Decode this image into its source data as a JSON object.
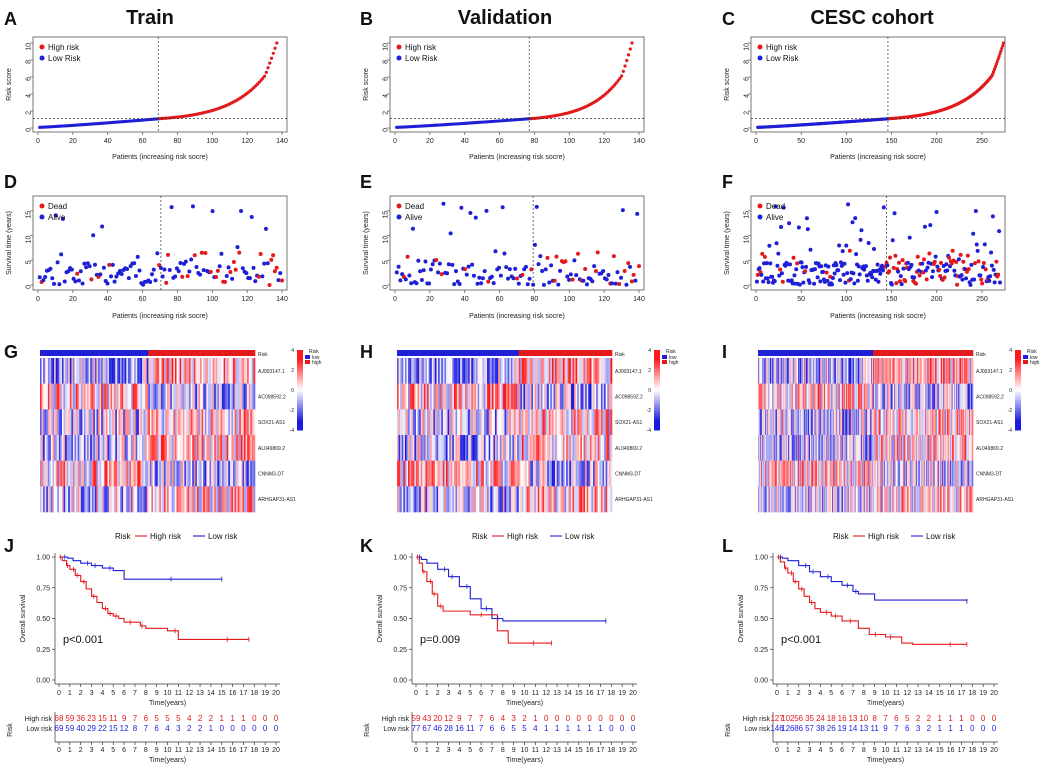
{
  "columns": [
    {
      "title": "Train"
    },
    {
      "title": "Validation"
    },
    {
      "title": "CESC cohort"
    }
  ],
  "colors": {
    "high": "#e31a1c",
    "low": "#1f1fd6",
    "heat_high": "#e8191c",
    "heat_mid": "#ffffff",
    "heat_low": "#1a1ae0"
  },
  "chart_data": [
    {
      "panel": "A",
      "type": "scatter",
      "ylabel": "Risk score",
      "xlabel": "Patients (increasing risk socre)",
      "xlim": [
        0,
        140
      ],
      "xticks": [
        0,
        20,
        40,
        60,
        80,
        100,
        120,
        140
      ],
      "ylim": [
        0,
        10
      ],
      "yticks": [
        0,
        2,
        4,
        6,
        8,
        10
      ],
      "n": 137,
      "cutoff_index": 69,
      "cutoff_value": 1.1,
      "max_value": 10,
      "legend": [
        "High risk",
        "Low Risk"
      ]
    },
    {
      "panel": "B",
      "type": "scatter",
      "ylabel": "Risk score",
      "xlabel": "Patients (increasing risk socre)",
      "xlim": [
        0,
        140
      ],
      "xticks": [
        0,
        20,
        40,
        60,
        80,
        100,
        120,
        140
      ],
      "ylim": [
        0,
        10
      ],
      "yticks": [
        0,
        2,
        4,
        6,
        8,
        10
      ],
      "n": 136,
      "cutoff_index": 77,
      "cutoff_value": 1.1,
      "max_value": 10,
      "legend": [
        "High risk",
        "Low Risk"
      ]
    },
    {
      "panel": "C",
      "type": "scatter",
      "ylabel": "Risk score",
      "xlabel": "Patients (increasing risk socre)",
      "xlim": [
        0,
        270
      ],
      "xticks": [
        0,
        50,
        100,
        150,
        200,
        250
      ],
      "ylim": [
        0,
        10
      ],
      "yticks": [
        0,
        2,
        4,
        6,
        8,
        10
      ],
      "n": 273,
      "cutoff_index": 146,
      "cutoff_value": 1.1,
      "max_value": 10,
      "legend": [
        "High risk",
        "Low Risk"
      ]
    },
    {
      "panel": "D",
      "type": "scatter",
      "ylabel": "Survival time (years)",
      "xlabel": "Patients (increasing risk socre)",
      "xlim": [
        0,
        140
      ],
      "xticks": [
        0,
        20,
        40,
        60,
        80,
        100,
        120,
        140
      ],
      "ylim": [
        0,
        17
      ],
      "yticks": [
        0,
        5,
        10,
        15
      ],
      "n": 137,
      "cutoff_index": 69,
      "seed": 11,
      "legend": [
        "Dead",
        "Alive"
      ]
    },
    {
      "panel": "E",
      "type": "scatter",
      "ylabel": "Survival time (years)",
      "xlabel": "Patients (increasing risk socre)",
      "xlim": [
        0,
        140
      ],
      "xticks": [
        0,
        20,
        40,
        60,
        80,
        100,
        120,
        140
      ],
      "ylim": [
        0,
        17
      ],
      "yticks": [
        0,
        5,
        10,
        15
      ],
      "n": 136,
      "cutoff_index": 77,
      "seed": 23,
      "legend": [
        "Dead",
        "Alive"
      ]
    },
    {
      "panel": "F",
      "type": "scatter",
      "ylabel": "Survival time (years)",
      "xlabel": "Patients (increasing risk socre)",
      "xlim": [
        0,
        270
      ],
      "xticks": [
        0,
        50,
        100,
        150,
        200,
        250
      ],
      "ylim": [
        0,
        17
      ],
      "yticks": [
        0,
        5,
        10,
        15
      ],
      "n": 273,
      "cutoff_index": 146,
      "seed": 37,
      "legend": [
        "Dead",
        "Alive"
      ]
    },
    {
      "panel": "G",
      "type": "heatmap",
      "n": 137,
      "cutoff_index": 69,
      "seed": 5,
      "genes": [
        "AJ003147.1",
        "AC098592.2",
        "SOX21-AS1",
        "AL049869.2",
        "CNNM3-DT",
        "ARHGAP31-AS1"
      ],
      "legend_title": "Risk",
      "legend_items": [
        "low",
        "high"
      ],
      "scale": [
        4,
        2,
        0,
        -2,
        -4
      ]
    },
    {
      "panel": "H",
      "type": "heatmap",
      "n": 136,
      "cutoff_index": 77,
      "seed": 17,
      "genes": [
        "AJ003147.1",
        "AC098592.2",
        "SOX21-AS1",
        "AL049869.2",
        "CNNM3-DT",
        "ARHGAP31-AS1"
      ],
      "legend_title": "Risk",
      "legend_items": [
        "low",
        "high"
      ],
      "scale": [
        4,
        2,
        0,
        -2,
        -4
      ]
    },
    {
      "panel": "I",
      "type": "heatmap",
      "n": 273,
      "cutoff_index": 146,
      "seed": 29,
      "genes": [
        "AJ003147.1",
        "AC098592.2",
        "SOX21-AS1",
        "AL049869.2",
        "CNNM3-DT",
        "ARHGAP31-AS1"
      ],
      "legend_title": "Risk",
      "legend_items": [
        "low",
        "high"
      ],
      "scale": [
        4,
        2,
        0,
        -2,
        -4
      ]
    },
    {
      "panel": "J",
      "type": "line",
      "legend_title": "Risk",
      "legend": [
        "High risk",
        "Low risk"
      ],
      "ylabel": "Overall survival",
      "xlabel": "Time(years)",
      "ylim": [
        0,
        1
      ],
      "yticks": [
        "0.00",
        "0.25",
        "0.50",
        "0.75",
        "1.00"
      ],
      "xlim": [
        0,
        20
      ],
      "xticks": [
        0,
        1,
        2,
        3,
        4,
        5,
        6,
        7,
        8,
        9,
        10,
        11,
        12,
        13,
        14,
        15,
        16,
        17,
        18,
        19,
        20
      ],
      "pvalue": "p<0.001",
      "high_curve": [
        [
          0,
          1.0
        ],
        [
          0.3,
          0.97
        ],
        [
          0.7,
          0.93
        ],
        [
          1.0,
          0.9
        ],
        [
          1.5,
          0.85
        ],
        [
          2.0,
          0.8
        ],
        [
          2.5,
          0.74
        ],
        [
          3.0,
          0.68
        ],
        [
          3.5,
          0.63
        ],
        [
          4.0,
          0.58
        ],
        [
          4.5,
          0.54
        ],
        [
          5.0,
          0.52
        ],
        [
          5.5,
          0.5
        ],
        [
          6.0,
          0.47
        ],
        [
          7.5,
          0.44
        ],
        [
          8.0,
          0.42
        ],
        [
          10.0,
          0.4
        ],
        [
          11.0,
          0.33
        ],
        [
          17.5,
          0.33
        ]
      ],
      "low_curve": [
        [
          0,
          1.0
        ],
        [
          0.8,
          0.99
        ],
        [
          1.3,
          0.97
        ],
        [
          2.0,
          0.95
        ],
        [
          3.0,
          0.93
        ],
        [
          4.0,
          0.91
        ],
        [
          5.0,
          0.89
        ],
        [
          6.0,
          0.82
        ],
        [
          15.0,
          0.82
        ]
      ],
      "risk_table": {
        "row_labels": [
          "High risk",
          "Low risk"
        ],
        "high": [
          "68",
          "59",
          "36",
          "23",
          "15",
          "11",
          "9",
          "7",
          "6",
          "5",
          "5",
          "5",
          "4",
          "2",
          "2",
          "1",
          "1",
          "1",
          "0",
          "0",
          "0"
        ],
        "low": [
          "69",
          "59",
          "40",
          "29",
          "22",
          "15",
          "12",
          "8",
          "7",
          "6",
          "4",
          "3",
          "2",
          "2",
          "1",
          "0",
          "0",
          "0",
          "0",
          "0",
          "0"
        ]
      }
    },
    {
      "panel": "K",
      "type": "line",
      "legend_title": "Risk",
      "legend": [
        "High risk",
        "Low risk"
      ],
      "ylabel": "Overall survival",
      "xlabel": "Time(years)",
      "ylim": [
        0,
        1
      ],
      "yticks": [
        "0.00",
        "0.25",
        "0.50",
        "0.75",
        "1.00"
      ],
      "xlim": [
        0,
        20
      ],
      "xticks": [
        0,
        1,
        2,
        3,
        4,
        5,
        6,
        7,
        8,
        9,
        10,
        11,
        12,
        13,
        14,
        15,
        16,
        17,
        18,
        19,
        20
      ],
      "pvalue": "p=0.009",
      "high_curve": [
        [
          0,
          1.0
        ],
        [
          0.3,
          0.95
        ],
        [
          0.6,
          0.88
        ],
        [
          1.0,
          0.8
        ],
        [
          1.5,
          0.7
        ],
        [
          2.0,
          0.6
        ],
        [
          2.5,
          0.56
        ],
        [
          5.0,
          0.53
        ],
        [
          7.5,
          0.4
        ],
        [
          8.5,
          0.3
        ],
        [
          12.5,
          0.3
        ]
      ],
      "low_curve": [
        [
          0,
          1.0
        ],
        [
          0.5,
          0.98
        ],
        [
          1.0,
          0.95
        ],
        [
          2.0,
          0.9
        ],
        [
          3.0,
          0.84
        ],
        [
          4.0,
          0.76
        ],
        [
          5.0,
          0.66
        ],
        [
          6.0,
          0.58
        ],
        [
          7.0,
          0.5
        ],
        [
          8.0,
          0.48
        ],
        [
          17.5,
          0.48
        ]
      ],
      "risk_table": {
        "row_labels": [
          "High risk",
          "Low risk"
        ],
        "high": [
          "59",
          "43",
          "20",
          "12",
          "9",
          "7",
          "7",
          "6",
          "4",
          "3",
          "2",
          "1",
          "0",
          "0",
          "0",
          "0",
          "0",
          "0",
          "0",
          "0",
          "0"
        ],
        "low": [
          "77",
          "67",
          "46",
          "28",
          "16",
          "11",
          "7",
          "6",
          "6",
          "5",
          "5",
          "4",
          "1",
          "1",
          "1",
          "1",
          "1",
          "1",
          "0",
          "0",
          "0"
        ]
      }
    },
    {
      "panel": "L",
      "type": "line",
      "legend_title": "Risk",
      "legend": [
        "High risk",
        "Low risk"
      ],
      "ylabel": "Overall survival",
      "xlabel": "Time(years)",
      "ylim": [
        0,
        1
      ],
      "yticks": [
        "0.00",
        "0.25",
        "0.50",
        "0.75",
        "1.00"
      ],
      "xlim": [
        0,
        20
      ],
      "xticks": [
        0,
        1,
        2,
        3,
        4,
        5,
        6,
        7,
        8,
        9,
        10,
        11,
        12,
        13,
        14,
        15,
        16,
        17,
        18,
        19,
        20
      ],
      "pvalue": "p<0.001",
      "high_curve": [
        [
          0,
          1.0
        ],
        [
          0.3,
          0.96
        ],
        [
          0.7,
          0.91
        ],
        [
          1.0,
          0.87
        ],
        [
          1.5,
          0.8
        ],
        [
          2.0,
          0.74
        ],
        [
          2.5,
          0.68
        ],
        [
          3.0,
          0.63
        ],
        [
          3.5,
          0.58
        ],
        [
          4.0,
          0.55
        ],
        [
          5.0,
          0.52
        ],
        [
          6.0,
          0.48
        ],
        [
          7.5,
          0.42
        ],
        [
          8.5,
          0.37
        ],
        [
          10.0,
          0.35
        ],
        [
          11.5,
          0.3
        ],
        [
          12.5,
          0.29
        ],
        [
          17.5,
          0.29
        ]
      ],
      "low_curve": [
        [
          0,
          1.0
        ],
        [
          0.5,
          0.99
        ],
        [
          1.0,
          0.97
        ],
        [
          2.0,
          0.93
        ],
        [
          3.0,
          0.88
        ],
        [
          4.0,
          0.84
        ],
        [
          5.0,
          0.8
        ],
        [
          6.0,
          0.77
        ],
        [
          7.0,
          0.72
        ],
        [
          7.5,
          0.7
        ],
        [
          9.0,
          0.65
        ],
        [
          17.5,
          0.64
        ]
      ],
      "risk_table": {
        "row_labels": [
          "High risk",
          "Low risk"
        ],
        "high": [
          "127",
          "102",
          "56",
          "35",
          "24",
          "18",
          "16",
          "13",
          "10",
          "8",
          "7",
          "6",
          "5",
          "2",
          "2",
          "1",
          "1",
          "1",
          "0",
          "0",
          "0"
        ],
        "low": [
          "146",
          "126",
          "86",
          "57",
          "38",
          "26",
          "19",
          "14",
          "13",
          "11",
          "9",
          "7",
          "6",
          "3",
          "2",
          "1",
          "1",
          "1",
          "0",
          "0",
          "0"
        ]
      }
    }
  ]
}
